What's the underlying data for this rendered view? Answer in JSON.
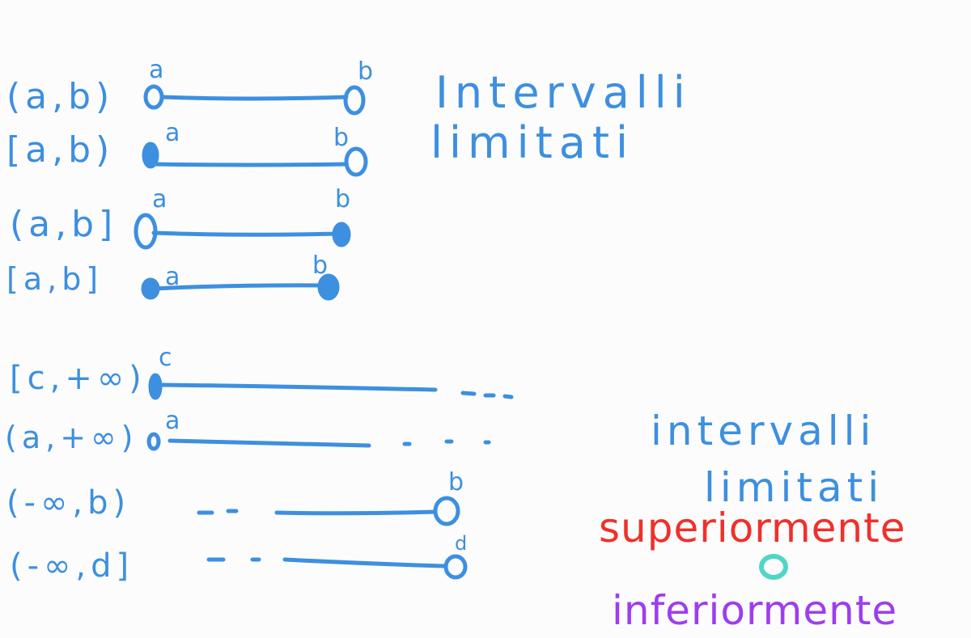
{
  "colors": {
    "ink_blue": "#3d8fe0",
    "ink_red": "#f0302a",
    "ink_teal": "#4fd6c6",
    "ink_purple": "#9d3df0",
    "background": "#fcfcfc"
  },
  "bounded": {
    "heading_line1": "Intervalli",
    "heading_line2": "limitati",
    "rows": [
      {
        "notation": "(a,b)",
        "left": "a",
        "right": "b",
        "left_closed": false,
        "right_closed": false
      },
      {
        "notation": "[a,b)",
        "left": "a",
        "right": "b",
        "left_closed": true,
        "right_closed": false
      },
      {
        "notation": "(a,b]",
        "left": "a",
        "right": "b",
        "left_closed": false,
        "right_closed": true
      },
      {
        "notation": "[a,b]",
        "left": "a",
        "right": "b",
        "left_closed": true,
        "right_closed": true
      }
    ]
  },
  "unbounded": {
    "heading_line1": "intervalli",
    "heading_line2": "limitati",
    "word_above": "superiormente",
    "connector": "o",
    "word_below": "inferiormente",
    "rows": [
      {
        "notation": "[c,+∞)",
        "endpoint": "c",
        "closed": true,
        "direction": "right"
      },
      {
        "notation": "(a,+∞)",
        "endpoint": "a",
        "closed": false,
        "direction": "right"
      },
      {
        "notation": "(-∞,b)",
        "endpoint": "b",
        "closed": false,
        "direction": "left"
      },
      {
        "notation": "(-∞,d]",
        "endpoint": "d",
        "closed": true,
        "direction": "left"
      }
    ]
  }
}
